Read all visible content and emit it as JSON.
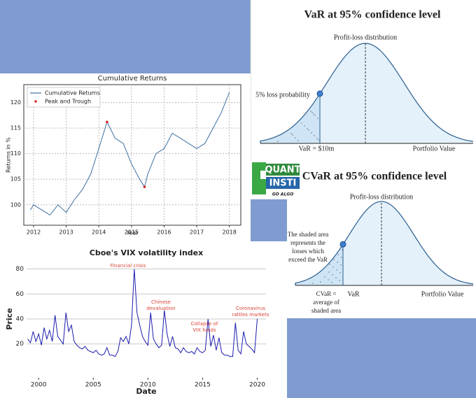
{
  "chart_data": [
    {
      "type": "line",
      "title": "Cumulative Returns",
      "x_label": "Year",
      "y_label": "Returns in %",
      "x": [
        2011.9,
        2012,
        2012.25,
        2012.5,
        2012.75,
        2013,
        2013.25,
        2013.5,
        2013.75,
        2014,
        2014.25,
        2014.5,
        2014.75,
        2015,
        2015.25,
        2015.4,
        2015.5,
        2015.75,
        2016,
        2016.25,
        2016.5,
        2016.75,
        2017,
        2017.25,
        2017.5,
        2017.75,
        2018
      ],
      "series": [
        {
          "name": "Cumulative Returns",
          "color": "#3d6fa3",
          "style": "line",
          "values": [
            99,
            100,
            99,
            98,
            100,
            98.5,
            101,
            103,
            106,
            111,
            116.2,
            113,
            112,
            108,
            105,
            103.5,
            106,
            110,
            111,
            114,
            113,
            112,
            111,
            112,
            115,
            118,
            122
          ]
        },
        {
          "name": "Peak and Trough",
          "color": "#d62728",
          "style": "points",
          "values": [
            null,
            null,
            null,
            null,
            null,
            null,
            null,
            null,
            null,
            null,
            116.2,
            null,
            null,
            null,
            null,
            103.5,
            null,
            null,
            null,
            null,
            null,
            null,
            null,
            null,
            null,
            null,
            null
          ]
        }
      ],
      "xlim": [
        2011.7,
        2018.35
      ],
      "xticks": [
        2012,
        2013,
        2014,
        2015,
        2016,
        2017,
        2018
      ],
      "ylim": [
        96,
        123.5
      ],
      "yticks": [
        100,
        105,
        110,
        115,
        120
      ],
      "grid": "both",
      "legend": "upper-left"
    },
    {
      "type": "line",
      "title": "Cboe's VIX volatility index",
      "x_label": "Date",
      "y_label": "Price",
      "x": [
        1999,
        1999.25,
        1999.5,
        1999.75,
        2000,
        2000.25,
        2000.5,
        2000.75,
        2001,
        2001.25,
        2001.5,
        2001.75,
        2002,
        2002.25,
        2002.5,
        2002.75,
        2003,
        2003.25,
        2003.5,
        2003.75,
        2004,
        2004.25,
        2004.5,
        2004.75,
        2005,
        2005.25,
        2005.5,
        2005.75,
        2006,
        2006.25,
        2006.5,
        2006.75,
        2007,
        2007.25,
        2007.5,
        2007.75,
        2008,
        2008.25,
        2008.5,
        2008.75,
        2009,
        2009.25,
        2009.5,
        2009.75,
        2010,
        2010.25,
        2010.5,
        2010.75,
        2011,
        2011.25,
        2011.5,
        2011.75,
        2012,
        2012.25,
        2012.5,
        2012.75,
        2013,
        2013.25,
        2013.5,
        2013.75,
        2014,
        2014.25,
        2014.5,
        2014.75,
        2015,
        2015.25,
        2015.5,
        2015.75,
        2016,
        2016.25,
        2016.5,
        2016.75,
        2017,
        2017.25,
        2017.5,
        2017.75,
        2018,
        2018.25,
        2018.5,
        2018.75,
        2019,
        2019.25,
        2019.5,
        2019.75,
        2020
      ],
      "series": [
        {
          "name": null,
          "color": "#1c1cae",
          "style": "line",
          "values": [
            24,
            21,
            30,
            22,
            28,
            19,
            33,
            24,
            31,
            22,
            43,
            26,
            23,
            20,
            45,
            30,
            35,
            22,
            19,
            17,
            16,
            18,
            15,
            14,
            13,
            15,
            12,
            11,
            12,
            17,
            11,
            11,
            10,
            14,
            25,
            22,
            26,
            20,
            35,
            80,
            45,
            35,
            26,
            22,
            19,
            45,
            24,
            20,
            17,
            19,
            47,
            28,
            18,
            26,
            17,
            16,
            13,
            17,
            14,
            13,
            14,
            12,
            17,
            14,
            13,
            15,
            40,
            18,
            27,
            15,
            25,
            13,
            11,
            11,
            10,
            10,
            37,
            15,
            12,
            30,
            20,
            18,
            16,
            13,
            40
          ]
        }
      ],
      "xlim": [
        1998.9,
        2020.8
      ],
      "xticks": [
        2000,
        2005,
        2010,
        2015,
        2020
      ],
      "ylim": [
        -7,
        87
      ],
      "yticks": [
        20,
        40,
        60,
        80
      ],
      "grid": "y",
      "annotations": [
        {
          "lines": [
            "Financial crisis"
          ]
        },
        {
          "lines": [
            "Chinese",
            "devaluation"
          ]
        },
        {
          "lines": [
            "Collapse of",
            "VIX funds"
          ]
        },
        {
          "lines": [
            "Coronavirus",
            "rattles markets"
          ]
        }
      ]
    }
  ],
  "diagrams": {
    "var": {
      "title": "VaR at 95% confidence level",
      "curve_label": "Profit-loss distribution",
      "tail_label": "5% loss probability",
      "var_label": "VaR = $10m",
      "axis_label": "Portfolio Value"
    },
    "cvar": {
      "title": "CVaR at 95% confidence level",
      "curve_label": "Profit-loss distribution",
      "note": [
        "The shaded area",
        "represents the",
        "losses which",
        "exceed the VaR"
      ],
      "cvar_label": [
        "CVaR =",
        "average of",
        "shaded area"
      ],
      "var_label": "VaR",
      "axis_label": "Portfolio Value"
    },
    "logo": {
      "line1": "QUANT",
      "line2": "INSTI",
      "tagline": "GO ALGO"
    }
  }
}
